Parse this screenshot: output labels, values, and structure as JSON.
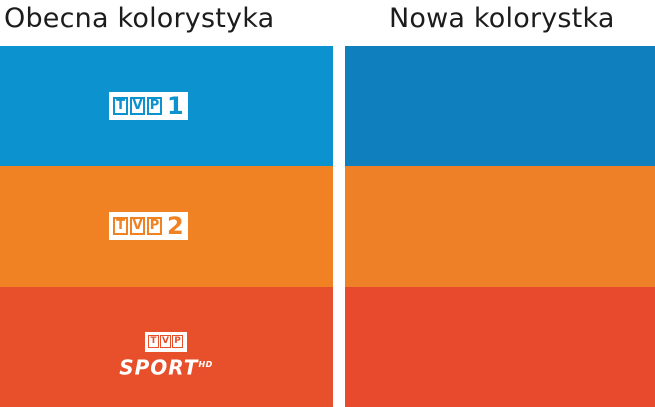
{
  "left": {
    "title": "Obecna kolorystyka",
    "colors": [
      "#0b92cf",
      "#f08223",
      "#e8502c"
    ],
    "logos": {
      "tvp1": {
        "letters": [
          "T",
          "V",
          "P"
        ],
        "number": "1"
      },
      "tvp2": {
        "letters": [
          "T",
          "V",
          "P"
        ],
        "number": "2"
      },
      "sport": {
        "letters": [
          "T",
          "V",
          "P"
        ],
        "text": "SPORT",
        "hd": "HD"
      }
    }
  },
  "right": {
    "title": "Nowa kolorystka",
    "colors": [
      "#0f7fbe",
      "#ee8128",
      "#e74a2c"
    ]
  }
}
